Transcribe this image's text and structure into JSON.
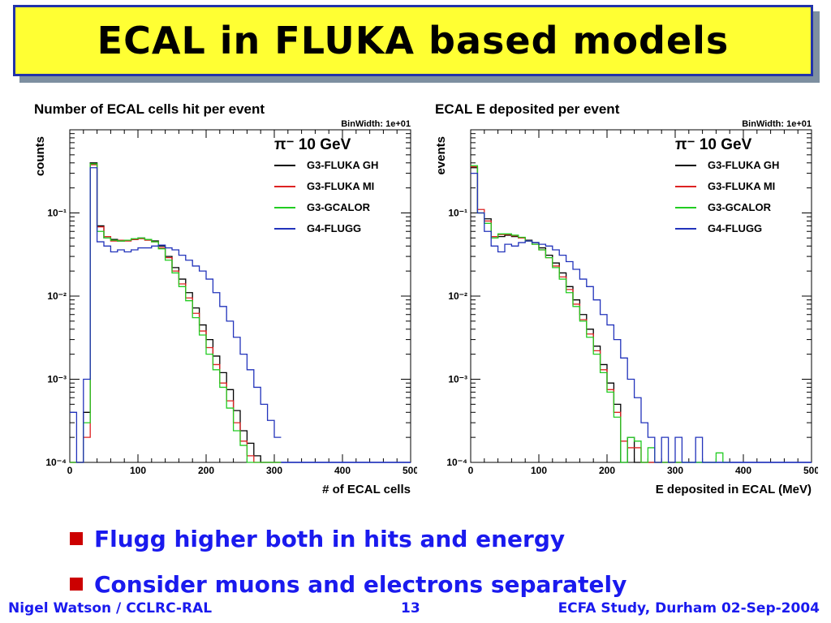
{
  "slide": {
    "title": "ECAL in FLUKA based models",
    "bullets": [
      "Flugg higher both in hits and energy",
      "Consider muons and electrons separately"
    ],
    "footer": {
      "left": "Nigel Watson / CCLRC-RAL",
      "center": "13",
      "right": "ECFA Study, Durham 02-Sep-2004"
    },
    "colors": {
      "title_bg": "#ffff33",
      "title_border": "#2233aa",
      "bullet_marker": "#cc0000",
      "text_blue": "#1a1aee"
    }
  },
  "chart_data": [
    {
      "type": "line",
      "title": "Number of ECAL cells hit per event",
      "binwidth_label": "BinWidth: 1e+01",
      "xlabel": "# of ECAL cells",
      "ylabel": "counts",
      "xlim": [
        0,
        500
      ],
      "ylim": [
        0.0001,
        1
      ],
      "yscale": "log",
      "xticks": [
        "0",
        "100",
        "200",
        "300",
        "400",
        "500"
      ],
      "yticks": [
        "10^-4",
        "10^-3",
        "10^-2",
        "10^-1"
      ],
      "legend_title": "π⁻ 10 GeV",
      "legend_position": "top-right",
      "grid": false,
      "series": [
        {
          "name": "G3-FLUKA GH",
          "color": "#000000",
          "x": [
            0,
            10,
            20,
            30,
            40,
            50,
            60,
            70,
            80,
            90,
            100,
            110,
            120,
            130,
            140,
            150,
            160,
            170,
            180,
            190,
            200,
            210,
            220,
            230,
            240,
            250,
            260,
            270,
            280,
            290,
            300
          ],
          "values": [
            0.0001,
            0.0001,
            0.0004,
            0.4,
            0.07,
            0.05,
            0.048,
            0.046,
            0.047,
            0.048,
            0.05,
            0.048,
            0.046,
            0.04,
            0.03,
            0.022,
            0.016,
            0.011,
            0.0072,
            0.0045,
            0.003,
            0.0019,
            0.0012,
            0.00075,
            0.00042,
            0.00024,
            0.00017,
            0.00012,
            0.0001,
            0.0001,
            0.0001
          ]
        },
        {
          "name": "G3-FLUKA MI",
          "color": "#dd2222",
          "x": [
            0,
            10,
            20,
            30,
            40,
            50,
            60,
            70,
            80,
            90,
            100,
            110,
            120,
            130,
            140,
            150,
            160,
            170,
            180,
            190,
            200,
            210,
            220,
            230,
            240,
            250,
            260,
            270,
            280,
            290,
            300
          ],
          "values": [
            0.0001,
            0.0001,
            0.0002,
            0.38,
            0.068,
            0.052,
            0.046,
            0.047,
            0.046,
            0.048,
            0.049,
            0.047,
            0.045,
            0.038,
            0.029,
            0.02,
            0.014,
            0.0095,
            0.0062,
            0.0038,
            0.0024,
            0.0015,
            0.0009,
            0.00055,
            0.0003,
            0.00018,
            0.00012,
            0.0001,
            0.0001,
            0.0001,
            0.0001
          ]
        },
        {
          "name": "G3-GCALOR",
          "color": "#22cc22",
          "x": [
            0,
            10,
            20,
            30,
            40,
            50,
            60,
            70,
            80,
            90,
            100,
            110,
            120,
            130,
            140,
            150,
            160,
            170,
            180,
            190,
            200,
            210,
            220,
            230,
            240,
            250,
            260,
            270,
            280,
            290,
            300
          ],
          "values": [
            0.0001,
            0.0001,
            0.0003,
            0.39,
            0.06,
            0.05,
            0.047,
            0.046,
            0.047,
            0.049,
            0.05,
            0.048,
            0.045,
            0.037,
            0.027,
            0.019,
            0.013,
            0.0088,
            0.0055,
            0.0034,
            0.002,
            0.0013,
            0.0008,
            0.00045,
            0.00024,
            0.00016,
            0.0001,
            0.0001,
            0.0001,
            0.0001,
            0.0001
          ]
        },
        {
          "name": "G4-FLUGG",
          "color": "#2233bb",
          "x": [
            0,
            10,
            20,
            30,
            40,
            50,
            60,
            70,
            80,
            90,
            100,
            110,
            120,
            130,
            140,
            150,
            160,
            170,
            180,
            190,
            200,
            210,
            220,
            230,
            240,
            250,
            260,
            270,
            280,
            290,
            300
          ],
          "values": [
            0.0004,
            0.0001,
            0.001,
            0.35,
            0.045,
            0.04,
            0.034,
            0.036,
            0.034,
            0.036,
            0.038,
            0.038,
            0.04,
            0.041,
            0.038,
            0.036,
            0.031,
            0.027,
            0.023,
            0.02,
            0.016,
            0.011,
            0.0075,
            0.005,
            0.0032,
            0.002,
            0.0013,
            0.0008,
            0.0005,
            0.00032,
            0.0002
          ]
        }
      ]
    },
    {
      "type": "line",
      "title": "ECAL E deposited per event",
      "binwidth_label": "BinWidth: 1e+01",
      "xlabel": "E deposited in ECAL (MeV)",
      "ylabel": "events",
      "xlim": [
        0,
        500
      ],
      "ylim": [
        0.0001,
        1
      ],
      "yscale": "log",
      "xticks": [
        "0",
        "100",
        "200",
        "300",
        "400",
        "500"
      ],
      "yticks": [
        "10^-4",
        "10^-3",
        "10^-2",
        "10^-1"
      ],
      "legend_title": "π⁻ 10 GeV",
      "legend_position": "top-right",
      "grid": false,
      "series": [
        {
          "name": "G3-FLUKA GH",
          "color": "#000000",
          "x": [
            0,
            10,
            20,
            30,
            40,
            50,
            60,
            70,
            80,
            90,
            100,
            110,
            120,
            130,
            140,
            150,
            160,
            170,
            180,
            190,
            200,
            210,
            220,
            230,
            240,
            250,
            260,
            270,
            280,
            290,
            300
          ],
          "values": [
            0.35,
            0.1,
            0.085,
            0.05,
            0.052,
            0.054,
            0.052,
            0.05,
            0.047,
            0.044,
            0.038,
            0.031,
            0.025,
            0.019,
            0.013,
            0.009,
            0.006,
            0.004,
            0.0025,
            0.0015,
            0.0009,
            0.0005,
            0.0001,
            0.0002,
            0.0001,
            0.0001,
            0.0001,
            0.0001,
            0.0001,
            0.0001,
            0.0001
          ]
        },
        {
          "name": "G3-FLUKA MI",
          "color": "#dd2222",
          "x": [
            0,
            10,
            20,
            30,
            40,
            50,
            60,
            70,
            80,
            90,
            100,
            110,
            120,
            130,
            140,
            150,
            160,
            170,
            180,
            190,
            200,
            210,
            220,
            230,
            240,
            250,
            260,
            270,
            280,
            290,
            300
          ],
          "values": [
            0.36,
            0.11,
            0.08,
            0.052,
            0.055,
            0.055,
            0.053,
            0.05,
            0.046,
            0.042,
            0.036,
            0.029,
            0.023,
            0.017,
            0.012,
            0.008,
            0.0052,
            0.0035,
            0.0022,
            0.0013,
            0.00075,
            0.0004,
            0.00018,
            0.00015,
            0.00015,
            0.0001,
            0.0001,
            0.0001,
            0.0001,
            0.0001,
            0.0001
          ]
        },
        {
          "name": "G3-GCALOR",
          "color": "#22cc22",
          "x": [
            0,
            10,
            20,
            30,
            40,
            50,
            60,
            70,
            80,
            90,
            100,
            110,
            120,
            130,
            140,
            150,
            160,
            170,
            180,
            190,
            200,
            210,
            220,
            230,
            240,
            250,
            260,
            270,
            280,
            290,
            300,
            310,
            320,
            330,
            340,
            350,
            360,
            370
          ],
          "values": [
            0.37,
            0.1,
            0.075,
            0.05,
            0.056,
            0.056,
            0.054,
            0.051,
            0.046,
            0.042,
            0.036,
            0.029,
            0.022,
            0.016,
            0.011,
            0.0075,
            0.005,
            0.0032,
            0.002,
            0.0012,
            0.0007,
            0.00035,
            0.0001,
            0.0002,
            0.00018,
            0.0001,
            0.00015,
            0.0001,
            0.0001,
            0.0001,
            0.0001,
            0.0001,
            0.0001,
            0.0001,
            0.0001,
            0.0001,
            0.00013,
            0.0001
          ]
        },
        {
          "name": "G4-FLUGG",
          "color": "#2233bb",
          "x": [
            0,
            10,
            20,
            30,
            40,
            50,
            60,
            70,
            80,
            90,
            100,
            110,
            120,
            130,
            140,
            150,
            160,
            170,
            180,
            190,
            200,
            210,
            220,
            230,
            240,
            250,
            260,
            270,
            280,
            290,
            300,
            310,
            320,
            330,
            340
          ],
          "values": [
            0.3,
            0.1,
            0.06,
            0.04,
            0.034,
            0.042,
            0.04,
            0.044,
            0.046,
            0.044,
            0.042,
            0.04,
            0.036,
            0.031,
            0.026,
            0.021,
            0.016,
            0.013,
            0.009,
            0.006,
            0.0045,
            0.003,
            0.0018,
            0.001,
            0.0006,
            0.0003,
            0.0002,
            0.0001,
            0.0002,
            0.0001,
            0.0002,
            0.0001,
            0.0001,
            0.0002,
            0.0001
          ]
        }
      ]
    }
  ]
}
